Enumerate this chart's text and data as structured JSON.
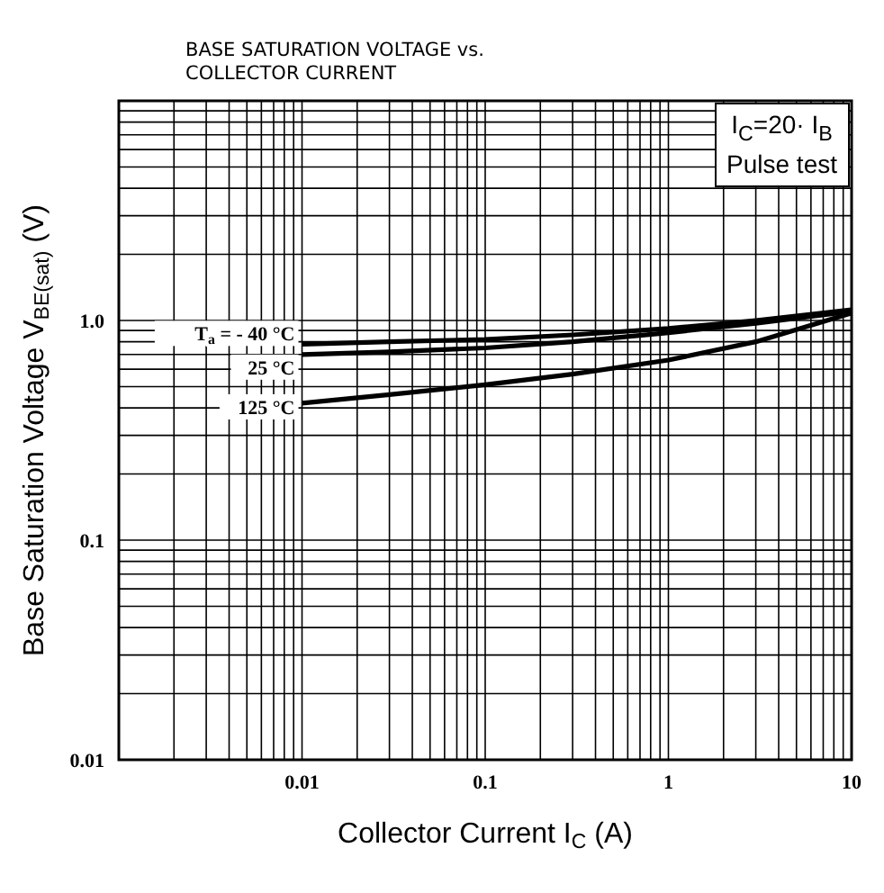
{
  "chart_data": {
    "type": "line",
    "title": "BASE SATURATION VOLTAGE vs.",
    "subtitle": "COLLECTOR CURRENT",
    "xlabel": "Collector Current  I$_{C}$  (A)",
    "ylabel": "Base Saturation Voltage V$_{BE(sat)}$  (V)",
    "annotations": [
      "I$_{C}$=20· I$_{B}$",
      "Pulse test"
    ],
    "log": "xy",
    "grid": true,
    "legend": false,
    "marker": "none",
    "line_style": "solid",
    "xlim": [
      0.001,
      10
    ],
    "ylim": [
      0.01,
      10
    ],
    "xticks": [
      {
        "value": 0.001,
        "label": null
      },
      {
        "value": 0.002,
        "label": null
      },
      {
        "value": 0.003,
        "label": null
      },
      {
        "value": 0.004,
        "label": null
      },
      {
        "value": 0.005,
        "label": null
      },
      {
        "value": 0.006,
        "label": null
      },
      {
        "value": 0.007,
        "label": null
      },
      {
        "value": 0.008,
        "label": null
      },
      {
        "value": 0.009,
        "label": null
      },
      {
        "value": 0.01,
        "label": "0.01"
      },
      {
        "value": 0.02,
        "label": null
      },
      {
        "value": 0.03,
        "label": null
      },
      {
        "value": 0.04,
        "label": null
      },
      {
        "value": 0.05,
        "label": null
      },
      {
        "value": 0.06,
        "label": null
      },
      {
        "value": 0.07,
        "label": null
      },
      {
        "value": 0.08,
        "label": null
      },
      {
        "value": 0.09,
        "label": null
      },
      {
        "value": 0.1,
        "label": "0.1"
      },
      {
        "value": 0.2,
        "label": null
      },
      {
        "value": 0.3,
        "label": null
      },
      {
        "value": 0.4,
        "label": null
      },
      {
        "value": 0.5,
        "label": null
      },
      {
        "value": 0.6,
        "label": null
      },
      {
        "value": 0.7,
        "label": null
      },
      {
        "value": 0.8,
        "label": null
      },
      {
        "value": 0.9,
        "label": null
      },
      1,
      {
        "value": 2,
        "label": null
      },
      {
        "value": 3,
        "label": null
      },
      {
        "value": 4,
        "label": null
      },
      {
        "value": 5,
        "label": null
      },
      {
        "value": 6,
        "label": null
      },
      {
        "value": 7,
        "label": null
      },
      {
        "value": 8,
        "label": null
      },
      {
        "value": 9,
        "label": null
      },
      10
    ],
    "yticks": [
      0.01,
      {
        "value": 0.02,
        "label": null
      },
      {
        "value": 0.03,
        "label": null
      },
      {
        "value": 0.04,
        "label": null
      },
      {
        "value": 0.05,
        "label": null
      },
      {
        "value": 0.06,
        "label": null
      },
      {
        "value": 0.07,
        "label": null
      },
      {
        "value": 0.08,
        "label": null
      },
      {
        "value": 0.09,
        "label": null
      },
      0.1,
      {
        "value": 0.2,
        "label": null
      },
      {
        "value": 0.3,
        "label": null
      },
      {
        "value": 0.4,
        "label": null
      },
      {
        "value": 0.5,
        "label": null
      },
      {
        "value": 0.6,
        "label": null
      },
      {
        "value": 0.7,
        "label": null
      },
      {
        "value": 0.8,
        "label": null
      },
      {
        "value": 0.9,
        "label": null
      },
      {
        "value": 1,
        "label": "1.0"
      },
      {
        "value": 2,
        "label": null
      },
      {
        "value": 3,
        "label": null
      },
      {
        "value": 4,
        "label": null
      },
      {
        "value": 5,
        "label": null
      },
      {
        "value": 6,
        "label": null
      },
      {
        "value": 7,
        "label": null
      },
      {
        "value": 8,
        "label": null
      },
      {
        "value": 9,
        "label": null
      },
      {
        "value": 10,
        "label": null
      }
    ],
    "x": [
      0.01,
      0.03,
      0.1,
      0.3,
      1,
      3,
      10
    ],
    "series": [
      {
        "name": "T$_{a}$ = - 40 °C",
        "color": "#000000",
        "values": [
          0.78,
          0.8,
          0.82,
          0.86,
          0.92,
          1.0,
          1.12
        ]
      },
      {
        "name": "25 °C",
        "color": "#000000",
        "values": [
          0.7,
          0.72,
          0.75,
          0.8,
          0.88,
          0.97,
          1.1
        ]
      },
      {
        "name": "125 °C",
        "color": "#000000",
        "values": [
          0.42,
          0.46,
          0.51,
          0.57,
          0.66,
          0.8,
          1.08
        ]
      }
    ]
  }
}
